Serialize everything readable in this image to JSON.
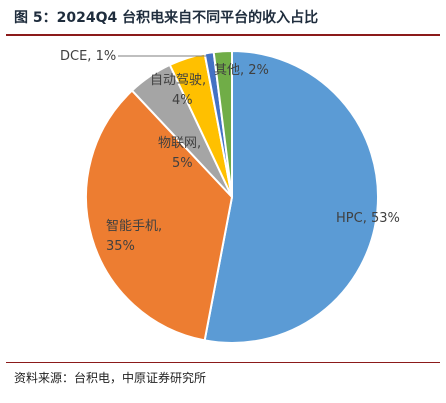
{
  "figure": {
    "title": "图 5：2024Q4 台积电来自不同平台的收入占比",
    "source": "资料来源：台积电，中原证券研究所"
  },
  "chart_data": {
    "type": "pie",
    "title": "",
    "categories": [
      "HPC",
      "智能手机",
      "物联网",
      "自动驾驶",
      "DCE",
      "其他"
    ],
    "values": [
      53,
      35,
      5,
      4,
      1,
      2
    ],
    "data_labels": [
      "HPC, 53%",
      "智能手机, 35%",
      "物联网, 5%",
      "自动驾驶, 4%",
      "DCE, 1%",
      "其他, 2%"
    ],
    "colors": [
      "#5b9bd5",
      "#ed7d31",
      "#a5a5a5",
      "#ffc000",
      "#4472c4",
      "#70ad47"
    ],
    "legend": "none"
  }
}
